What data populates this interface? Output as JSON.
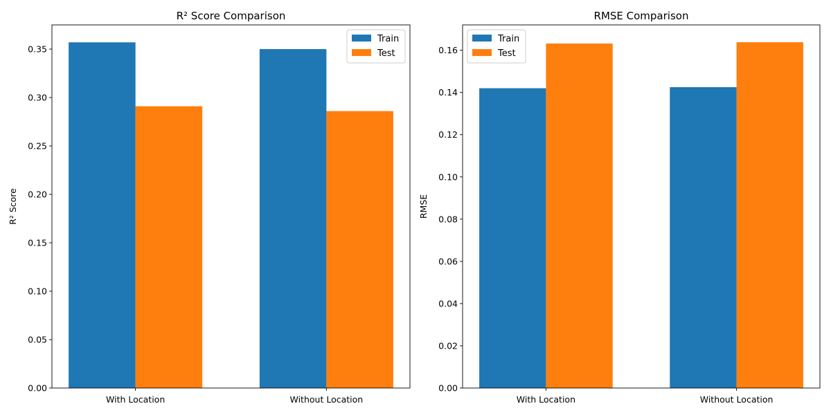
{
  "chart_data": [
    {
      "type": "bar",
      "title": "R² Score Comparison",
      "xlabel": "",
      "ylabel": "R² Score",
      "categories": [
        "With Location",
        "Without Location"
      ],
      "series": [
        {
          "name": "Train",
          "values": [
            0.357,
            0.35
          ],
          "color": "#1f77b4"
        },
        {
          "name": "Test",
          "values": [
            0.291,
            0.286
          ],
          "color": "#ff7f0e"
        }
      ],
      "ylim": [
        0,
        0.375
      ],
      "yticks": [
        0.0,
        0.05,
        0.1,
        0.15,
        0.2,
        0.25,
        0.3,
        0.35
      ],
      "ytick_labels": [
        "0.00",
        "0.05",
        "0.10",
        "0.15",
        "0.20",
        "0.25",
        "0.30",
        "0.35"
      ],
      "legend_position": "top-right",
      "grid": false
    },
    {
      "type": "bar",
      "title": "RMSE Comparison",
      "xlabel": "",
      "ylabel": "RMSE",
      "categories": [
        "With Location",
        "Without Location"
      ],
      "series": [
        {
          "name": "Train",
          "values": [
            0.142,
            0.1425
          ],
          "color": "#1f77b4"
        },
        {
          "name": "Test",
          "values": [
            0.1632,
            0.1638
          ],
          "color": "#ff7f0e"
        }
      ],
      "ylim": [
        0,
        0.172
      ],
      "yticks": [
        0.0,
        0.02,
        0.04,
        0.06,
        0.08,
        0.1,
        0.12,
        0.14,
        0.16
      ],
      "ytick_labels": [
        "0.00",
        "0.02",
        "0.04",
        "0.06",
        "0.08",
        "0.10",
        "0.12",
        "0.14",
        "0.16"
      ],
      "legend_position": "top-left",
      "grid": false
    }
  ]
}
